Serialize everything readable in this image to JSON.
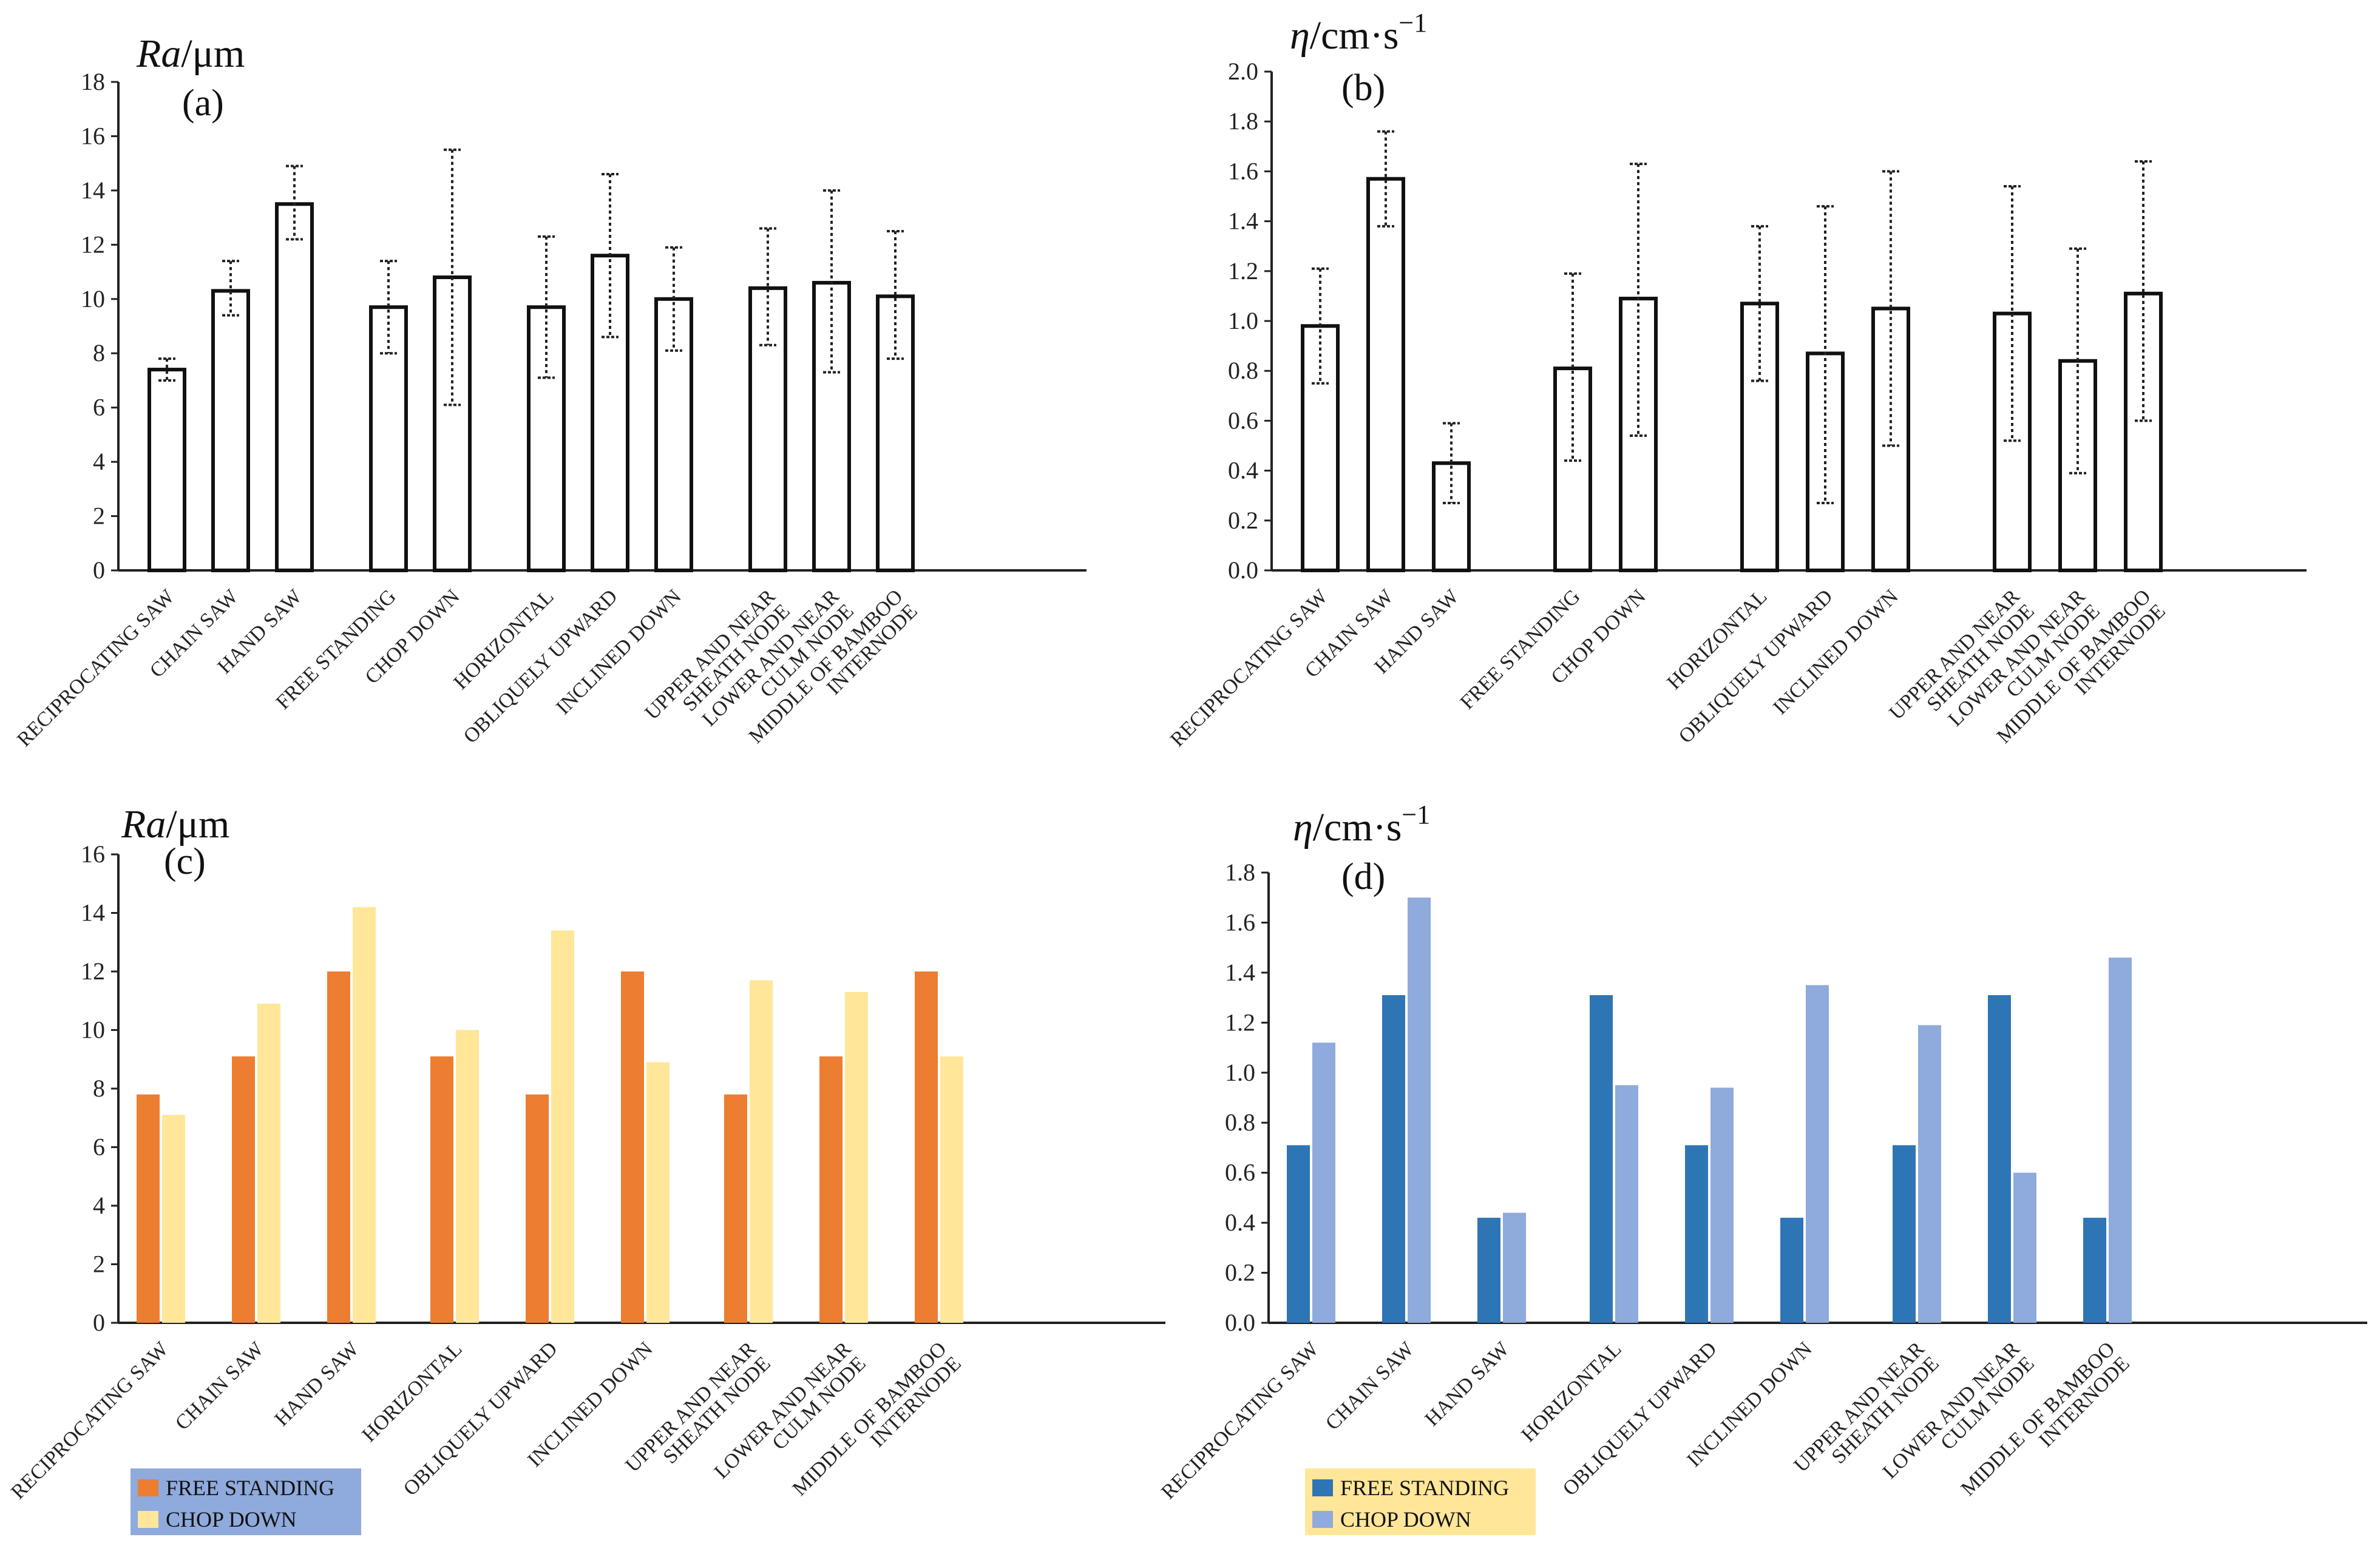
{
  "chart_data": [
    {
      "id": "a",
      "type": "bar",
      "panel_label": "(a)",
      "ylabel_symbol": "Ra",
      "ylabel_unit": "/μm",
      "ylim": [
        0,
        18
      ],
      "ytick_step": 2,
      "ytick_decimals": 0,
      "error_bars": true,
      "groups": [
        [
          {
            "label": [
              "RECIPROCATING SAW"
            ],
            "value": 7.4,
            "err_low": 7.0,
            "err_high": 7.8
          },
          {
            "label": [
              "CHAIN SAW"
            ],
            "value": 10.3,
            "err_low": 9.4,
            "err_high": 11.4
          },
          {
            "label": [
              "HAND SAW"
            ],
            "value": 13.5,
            "err_low": 12.2,
            "err_high": 14.9
          }
        ],
        [
          {
            "label": [
              "FREE STANDING"
            ],
            "value": 9.7,
            "err_low": 8.0,
            "err_high": 11.4
          },
          {
            "label": [
              "CHOP DOWN"
            ],
            "value": 10.8,
            "err_low": 6.1,
            "err_high": 15.5
          }
        ],
        [
          {
            "label": [
              "HORIZONTAL"
            ],
            "value": 9.7,
            "err_low": 7.1,
            "err_high": 12.3
          },
          {
            "label": [
              "OBLIQUELY UPWARD"
            ],
            "value": 11.6,
            "err_low": 8.6,
            "err_high": 14.6
          },
          {
            "label": [
              "INCLINED DOWN"
            ],
            "value": 10.0,
            "err_low": 8.1,
            "err_high": 11.9
          }
        ],
        [
          {
            "label": [
              "UPPER AND NEAR",
              "SHEATH NODE"
            ],
            "value": 10.4,
            "err_low": 8.3,
            "err_high": 12.6
          },
          {
            "label": [
              "LOWER AND NEAR",
              "CULM NODE"
            ],
            "value": 10.6,
            "err_low": 7.3,
            "err_high": 14.0
          },
          {
            "label": [
              "MIDDLE OF BAMBOO",
              "INTERNODE"
            ],
            "value": 10.1,
            "err_low": 7.8,
            "err_high": 12.5
          }
        ]
      ]
    },
    {
      "id": "b",
      "type": "bar",
      "panel_label": "(b)",
      "ylabel_symbol": "η",
      "ylabel_unit": "/cm·s",
      "ylabel_exp": "−1",
      "ylim": [
        0,
        2.0
      ],
      "ytick_step": 0.2,
      "ytick_decimals": 1,
      "error_bars": true,
      "groups": [
        [
          {
            "label": [
              "RECIPROCATING SAW"
            ],
            "value": 0.98,
            "err_low": 0.75,
            "err_high": 1.21
          },
          {
            "label": [
              "CHAIN SAW"
            ],
            "value": 1.57,
            "err_low": 1.38,
            "err_high": 1.76
          },
          {
            "label": [
              "HAND SAW"
            ],
            "value": 0.43,
            "err_low": 0.27,
            "err_high": 0.59
          }
        ],
        [
          {
            "label": [
              "FREE STANDING"
            ],
            "value": 0.81,
            "err_low": 0.44,
            "err_high": 1.19
          },
          {
            "label": [
              "CHOP DOWN"
            ],
            "value": 1.09,
            "err_low": 0.54,
            "err_high": 1.63
          }
        ],
        [
          {
            "label": [
              "HORIZONTAL"
            ],
            "value": 1.07,
            "err_low": 0.76,
            "err_high": 1.38
          },
          {
            "label": [
              "OBLIQUELY UPWARD"
            ],
            "value": 0.87,
            "err_low": 0.27,
            "err_high": 1.46
          },
          {
            "label": [
              "INCLINED DOWN"
            ],
            "value": 1.05,
            "err_low": 0.5,
            "err_high": 1.6
          }
        ],
        [
          {
            "label": [
              "UPPER AND NEAR",
              "SHEATH NODE"
            ],
            "value": 1.03,
            "err_low": 0.52,
            "err_high": 1.54
          },
          {
            "label": [
              "LOWER AND NEAR",
              "CULM NODE"
            ],
            "value": 0.84,
            "err_low": 0.39,
            "err_high": 1.29
          },
          {
            "label": [
              "MIDDLE OF BAMBOO",
              "INTERNODE"
            ],
            "value": 1.11,
            "err_low": 0.6,
            "err_high": 1.64
          }
        ]
      ]
    },
    {
      "id": "c",
      "type": "bar",
      "panel_label": "(c)",
      "ylabel_symbol": "Ra",
      "ylabel_unit": "/μm",
      "ylim": [
        0,
        16
      ],
      "ytick_step": 2,
      "ytick_decimals": 0,
      "series": [
        {
          "name": "FREE STANDING",
          "color": "#ED7D31"
        },
        {
          "name": "CHOP DOWN",
          "color": "#FFE699"
        }
      ],
      "legend_bg": "#8FAADC",
      "groups": [
        [
          {
            "label": [
              "RECIPROCATING SAW"
            ],
            "values": [
              7.8,
              7.1
            ]
          },
          {
            "label": [
              "CHAIN SAW"
            ],
            "values": [
              9.1,
              10.9
            ]
          },
          {
            "label": [
              "HAND SAW"
            ],
            "values": [
              12.0,
              14.2
            ]
          }
        ],
        [
          {
            "label": [
              "HORIZONTAL"
            ],
            "values": [
              9.1,
              10.0
            ]
          },
          {
            "label": [
              "OBLIQUELY UPWARD"
            ],
            "values": [
              7.8,
              13.4
            ]
          },
          {
            "label": [
              "INCLINED DOWN"
            ],
            "values": [
              12.0,
              8.9
            ]
          }
        ],
        [
          {
            "label": [
              "UPPER AND NEAR",
              "SHEATH NODE"
            ],
            "values": [
              7.8,
              11.7
            ]
          },
          {
            "label": [
              "LOWER AND NEAR",
              "CULM NODE"
            ],
            "values": [
              9.1,
              11.3
            ]
          },
          {
            "label": [
              "MIDDLE OF BAMBOO",
              "INTERNODE"
            ],
            "values": [
              12.0,
              9.1
            ]
          }
        ]
      ]
    },
    {
      "id": "d",
      "type": "bar",
      "panel_label": "(d)",
      "ylabel_symbol": "η",
      "ylabel_unit": "/cm·s",
      "ylabel_exp": "−1",
      "ylim": [
        0,
        1.8
      ],
      "ytick_step": 0.2,
      "ytick_decimals": 1,
      "series": [
        {
          "name": "FREE STANDING",
          "color": "#2E75B6"
        },
        {
          "name": "CHOP DOWN",
          "color": "#8FAADC"
        }
      ],
      "legend_bg": "#FFE699",
      "groups": [
        [
          {
            "label": [
              "RECIPROCATING SAW"
            ],
            "values": [
              0.71,
              1.12
            ]
          },
          {
            "label": [
              "CHAIN SAW"
            ],
            "values": [
              1.31,
              1.7
            ]
          },
          {
            "label": [
              "HAND SAW"
            ],
            "values": [
              0.42,
              0.44
            ]
          }
        ],
        [
          {
            "label": [
              "HORIZONTAL"
            ],
            "values": [
              1.31,
              0.95
            ]
          },
          {
            "label": [
              "OBLIQUELY UPWARD"
            ],
            "values": [
              0.71,
              0.94
            ]
          },
          {
            "label": [
              "INCLINED DOWN"
            ],
            "values": [
              0.42,
              1.35
            ]
          }
        ],
        [
          {
            "label": [
              "UPPER AND NEAR",
              "SHEATH NODE"
            ],
            "values": [
              0.71,
              1.19
            ]
          },
          {
            "label": [
              "LOWER AND NEAR",
              "CULM NODE"
            ],
            "values": [
              1.31,
              0.6
            ]
          },
          {
            "label": [
              "MIDDLE OF BAMBOO",
              "INTERNODE"
            ],
            "values": [
              0.42,
              1.46
            ]
          }
        ]
      ]
    }
  ]
}
